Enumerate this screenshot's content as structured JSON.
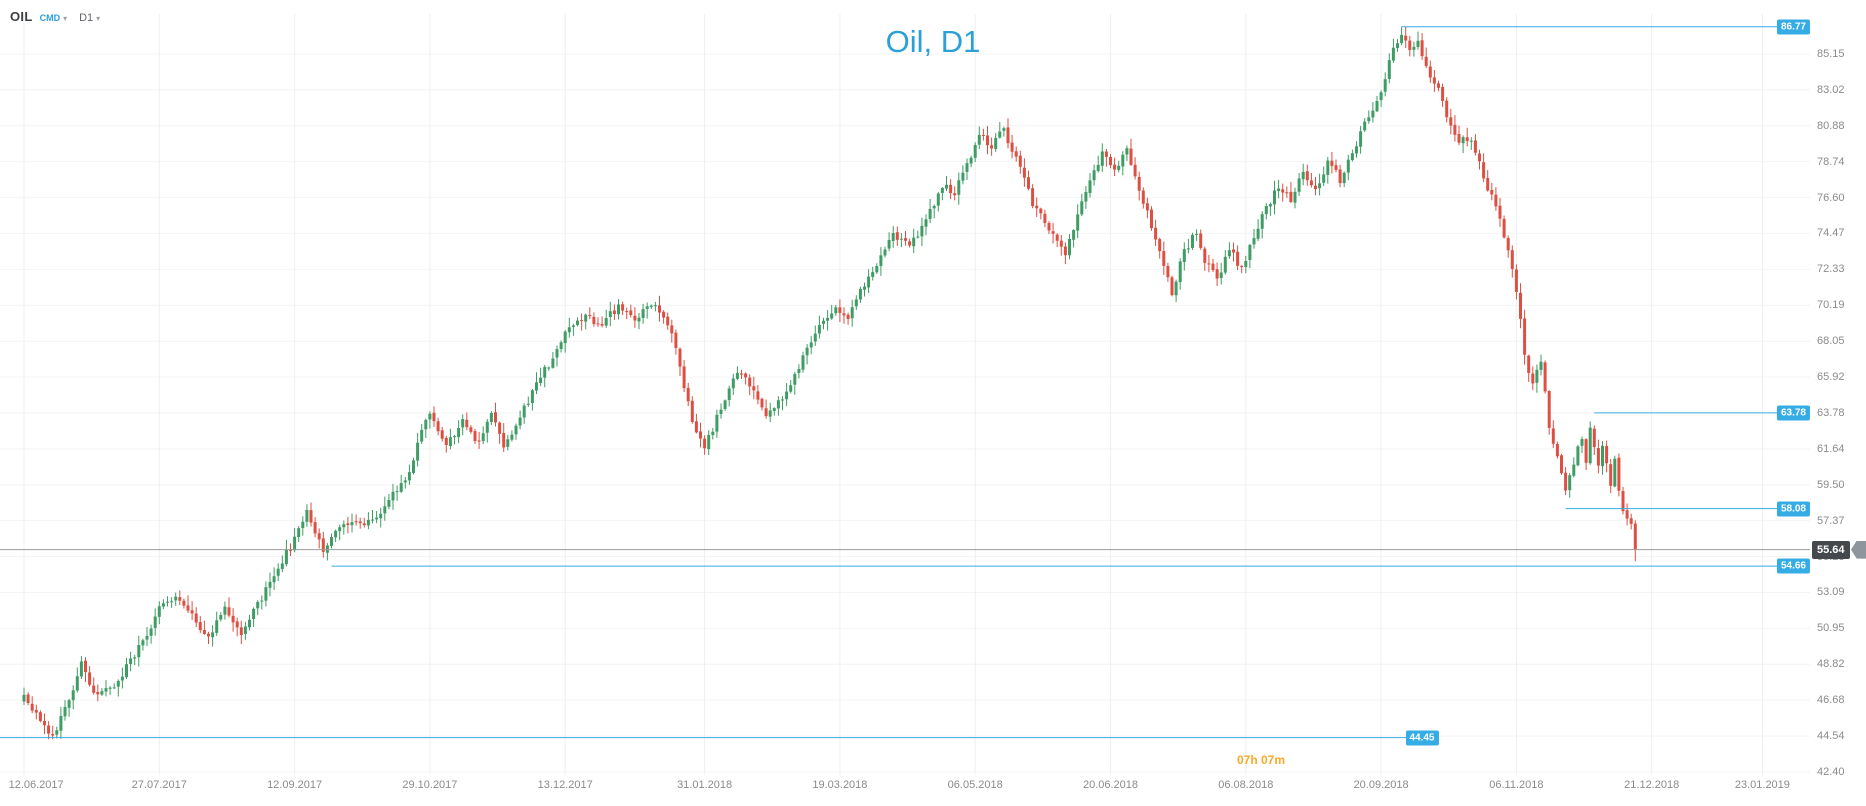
{
  "title": "Oil, D1",
  "header": {
    "symbol": "OIL",
    "market": "CMD",
    "timeframe": "D1"
  },
  "icons": {
    "chevron_down": "▾"
  },
  "colors": {
    "accent_blue": "#2a9fd8",
    "level_blue": "#36ace4",
    "up": "#3f9c64",
    "down": "#dd4f42",
    "countdown_orange": "#f7a928",
    "current_line_gray": "#9b9b9b",
    "badge_dark": "#45494e"
  },
  "axis": {
    "price_ticks": [
      "85.15",
      "83.02",
      "80.88",
      "78.74",
      "76.60",
      "74.47",
      "72.33",
      "70.19",
      "68.05",
      "65.92",
      "63.78",
      "61.64",
      "59.50",
      "57.37",
      "55.23",
      "53.09",
      "50.95",
      "48.82",
      "46.68",
      "44.54",
      "42.40"
    ],
    "date_ticks": [
      {
        "label": "12.06.2017",
        "day": 0
      },
      {
        "label": "27.07.2017",
        "day": 33
      },
      {
        "label": "12.09.2017",
        "day": 66
      },
      {
        "label": "29.10.2017",
        "day": 99
      },
      {
        "label": "13.12.2017",
        "day": 132
      },
      {
        "label": "31.01.2018",
        "day": 166
      },
      {
        "label": "19.03.2018",
        "day": 199
      },
      {
        "label": "06.05.2018",
        "day": 232
      },
      {
        "label": "20.06.2018",
        "day": 265
      },
      {
        "label": "06.08.2018",
        "day": 298
      },
      {
        "label": "20.09.2018",
        "day": 331
      },
      {
        "label": "06.11.2018",
        "day": 364
      },
      {
        "label": "21.12.2018",
        "day": 397
      },
      {
        "label": "23.01.2019",
        "day": 424
      }
    ]
  },
  "levels": [
    {
      "label": "86.77",
      "price": 86.77,
      "start_day": 336,
      "to_axis": true
    },
    {
      "label": "63.78",
      "price": 63.78,
      "start_day": 383,
      "to_axis": true
    },
    {
      "label": "58.08",
      "price": 58.08,
      "start_day": 376,
      "to_axis": true
    },
    {
      "label": "54.66",
      "price": 54.66,
      "start_day": 75,
      "to_axis": true
    },
    {
      "label": "44.45",
      "price": 44.45,
      "start_day": -6,
      "to_axis": false,
      "end_day": 345
    }
  ],
  "current": {
    "price": "55.64",
    "price_value": 55.64,
    "countdown": "07h 07m"
  },
  "chart_data": {
    "type": "candlestick",
    "symbol": "OIL",
    "market": "CMD",
    "timeframe": "D1",
    "title": "Oil, D1",
    "date_range": [
      "12.06.2017",
      "23.01.2019"
    ],
    "y_axis_ticks": [
      85.15,
      83.02,
      80.88,
      78.74,
      76.6,
      74.47,
      72.33,
      70.19,
      68.05,
      65.92,
      63.78,
      61.64,
      59.5,
      57.37,
      55.23,
      53.09,
      50.95,
      48.82,
      46.68,
      44.54,
      42.4
    ],
    "ylim": [
      41.6,
      88.4
    ],
    "grid": true,
    "up_color": "#3f9c64",
    "down_color": "#dd4f42",
    "current_price": 55.64,
    "period_high": 86.77,
    "period_low": 44.35,
    "horizontal_levels": [
      86.77,
      63.78,
      58.08,
      54.66,
      44.45
    ],
    "anchor_format": "[trading_day_index_from_12.06.2017, approx_close_price]",
    "close_path_anchors": [
      [
        0,
        47.0
      ],
      [
        3,
        45.9
      ],
      [
        7,
        44.6
      ],
      [
        11,
        46.5
      ],
      [
        14,
        48.8
      ],
      [
        18,
        46.8
      ],
      [
        23,
        47.8
      ],
      [
        28,
        49.8
      ],
      [
        33,
        52.1
      ],
      [
        37,
        52.8
      ],
      [
        41,
        51.6
      ],
      [
        45,
        50.5
      ],
      [
        49,
        52.1
      ],
      [
        53,
        50.8
      ],
      [
        57,
        52.3
      ],
      [
        62,
        54.6
      ],
      [
        66,
        56.2
      ],
      [
        69,
        57.9
      ],
      [
        73,
        55.7
      ],
      [
        78,
        57.3
      ],
      [
        83,
        57.0
      ],
      [
        88,
        58.2
      ],
      [
        93,
        59.8
      ],
      [
        99,
        63.9
      ],
      [
        103,
        61.7
      ],
      [
        107,
        63.4
      ],
      [
        111,
        62.0
      ],
      [
        114,
        63.9
      ],
      [
        117,
        61.7
      ],
      [
        122,
        64.0
      ],
      [
        127,
        66.3
      ],
      [
        132,
        68.4
      ],
      [
        137,
        69.6
      ],
      [
        141,
        69.0
      ],
      [
        145,
        70.2
      ],
      [
        149,
        69.3
      ],
      [
        153,
        70.4
      ],
      [
        158,
        68.5
      ],
      [
        161,
        65.2
      ],
      [
        164,
        62.6
      ],
      [
        166,
        61.8
      ],
      [
        170,
        64.0
      ],
      [
        174,
        66.4
      ],
      [
        178,
        65.3
      ],
      [
        181,
        63.7
      ],
      [
        185,
        64.5
      ],
      [
        190,
        67.0
      ],
      [
        194,
        68.9
      ],
      [
        198,
        70.2
      ],
      [
        201,
        69.4
      ],
      [
        204,
        71.0
      ],
      [
        208,
        72.6
      ],
      [
        212,
        74.4
      ],
      [
        216,
        73.6
      ],
      [
        220,
        75.3
      ],
      [
        224,
        77.4
      ],
      [
        227,
        76.8
      ],
      [
        230,
        78.6
      ],
      [
        233,
        80.3
      ],
      [
        236,
        79.7
      ],
      [
        239,
        80.6
      ],
      [
        242,
        78.9
      ],
      [
        246,
        76.3
      ],
      [
        250,
        74.6
      ],
      [
        254,
        73.2
      ],
      [
        257,
        75.6
      ],
      [
        260,
        77.8
      ],
      [
        263,
        79.2
      ],
      [
        266,
        78.4
      ],
      [
        269,
        79.3
      ],
      [
        272,
        77.2
      ],
      [
        275,
        74.9
      ],
      [
        278,
        72.6
      ],
      [
        280,
        70.9
      ],
      [
        283,
        73.4
      ],
      [
        286,
        74.6
      ],
      [
        288,
        72.8
      ],
      [
        291,
        71.8
      ],
      [
        294,
        73.5
      ],
      [
        297,
        72.4
      ],
      [
        300,
        74.3
      ],
      [
        303,
        76.0
      ],
      [
        306,
        77.3
      ],
      [
        309,
        76.5
      ],
      [
        312,
        78.0
      ],
      [
        315,
        77.0
      ],
      [
        318,
        78.8
      ],
      [
        321,
        77.6
      ],
      [
        324,
        79.2
      ],
      [
        327,
        80.9
      ],
      [
        330,
        82.1
      ],
      [
        332,
        83.8
      ],
      [
        334,
        85.5
      ],
      [
        336,
        86.5
      ],
      [
        338,
        85.2
      ],
      [
        340,
        85.8
      ],
      [
        342,
        84.3
      ],
      [
        345,
        83.2
      ],
      [
        347,
        81.5
      ],
      [
        350,
        80.1
      ],
      [
        353,
        80.0
      ],
      [
        355,
        78.6
      ],
      [
        357,
        77.0
      ],
      [
        359,
        76.2
      ],
      [
        361,
        74.4
      ],
      [
        363,
        72.5
      ],
      [
        365,
        69.5
      ],
      [
        366,
        67.0
      ],
      [
        368,
        65.4
      ],
      [
        370,
        66.8
      ],
      [
        372,
        63.0
      ],
      [
        374,
        61.0
      ],
      [
        376,
        59.3
      ],
      [
        378,
        60.8
      ],
      [
        380,
        62.3
      ],
      [
        381,
        61.0
      ],
      [
        382,
        62.8
      ],
      [
        383,
        61.6
      ],
      [
        384,
        60.4
      ],
      [
        385,
        61.8
      ],
      [
        386,
        60.7
      ],
      [
        387,
        59.6
      ],
      [
        388,
        60.9
      ],
      [
        389,
        59.2
      ],
      [
        390,
        58.0
      ],
      [
        391,
        57.3
      ],
      [
        392,
        57.0
      ],
      [
        393,
        55.64
      ]
    ]
  }
}
